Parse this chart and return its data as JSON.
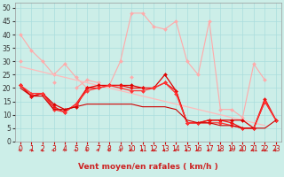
{
  "background_color": "#cceee8",
  "grid_color": "#aadddd",
  "xlabel": "Vent moyen/en rafales ( km/h )",
  "ylabel_ticks": [
    0,
    5,
    10,
    15,
    20,
    25,
    30,
    35,
    40,
    45,
    50
  ],
  "x_values": [
    0,
    1,
    2,
    3,
    4,
    5,
    6,
    7,
    8,
    9,
    10,
    11,
    12,
    13,
    14,
    15,
    16,
    17,
    18,
    19,
    20,
    21,
    22,
    23
  ],
  "series": [
    {
      "y": [
        40,
        34,
        30,
        25,
        29,
        24,
        20,
        21,
        21,
        30,
        48,
        48,
        43,
        42,
        45,
        30,
        25,
        45,
        12,
        12,
        9,
        29,
        23,
        null
      ],
      "color": "#ffaaaa",
      "marker": "D",
      "markersize": 2.0,
      "linewidth": 0.8
    },
    {
      "y": [
        30,
        null,
        null,
        22,
        null,
        20,
        23,
        22,
        null,
        null,
        24,
        null,
        null,
        null,
        null,
        null,
        null,
        null,
        null,
        null,
        null,
        null,
        null,
        null
      ],
      "color": "#ffaaaa",
      "marker": "D",
      "markersize": 2.0,
      "linewidth": 0.8
    },
    {
      "y": [
        28,
        27,
        26,
        25,
        24,
        23,
        22,
        21,
        20,
        19,
        18,
        17,
        16,
        15,
        14,
        13,
        12,
        11,
        10,
        9,
        8,
        7,
        6,
        null
      ],
      "color": "#ffbbbb",
      "marker": null,
      "markersize": 0,
      "linewidth": 0.9
    },
    {
      "y": [
        21,
        17,
        18,
        14,
        12,
        13,
        20,
        21,
        21,
        21,
        21,
        20,
        20,
        25,
        19,
        7,
        7,
        8,
        8,
        8,
        8,
        5,
        15,
        8
      ],
      "color": "#dd0000",
      "marker": "D",
      "markersize": 2.0,
      "linewidth": 0.9
    },
    {
      "y": [
        21,
        17,
        18,
        13,
        11,
        14,
        20,
        20,
        21,
        21,
        20,
        20,
        20,
        22,
        19,
        7,
        7,
        8,
        8,
        7,
        5,
        5,
        16,
        8
      ],
      "color": "#ee1111",
      "marker": "D",
      "markersize": 2.0,
      "linewidth": 0.9
    },
    {
      "y": [
        21,
        18,
        18,
        12,
        11,
        14,
        19,
        20,
        21,
        20,
        19,
        19,
        20,
        22,
        18,
        7,
        7,
        7,
        7,
        6,
        5,
        5,
        15,
        8
      ],
      "color": "#ff3333",
      "marker": "D",
      "markersize": 2.0,
      "linewidth": 0.9
    },
    {
      "y": [
        20,
        17,
        17,
        12,
        12,
        13,
        14,
        14,
        14,
        14,
        14,
        13,
        13,
        13,
        12,
        8,
        7,
        7,
        6,
        6,
        5,
        5,
        5,
        8
      ],
      "color": "#cc0000",
      "marker": null,
      "markersize": 0,
      "linewidth": 0.8
    }
  ],
  "arrow_color": "#cc2222",
  "tick_fontsize": 5.5,
  "xlabel_fontsize": 6.5
}
